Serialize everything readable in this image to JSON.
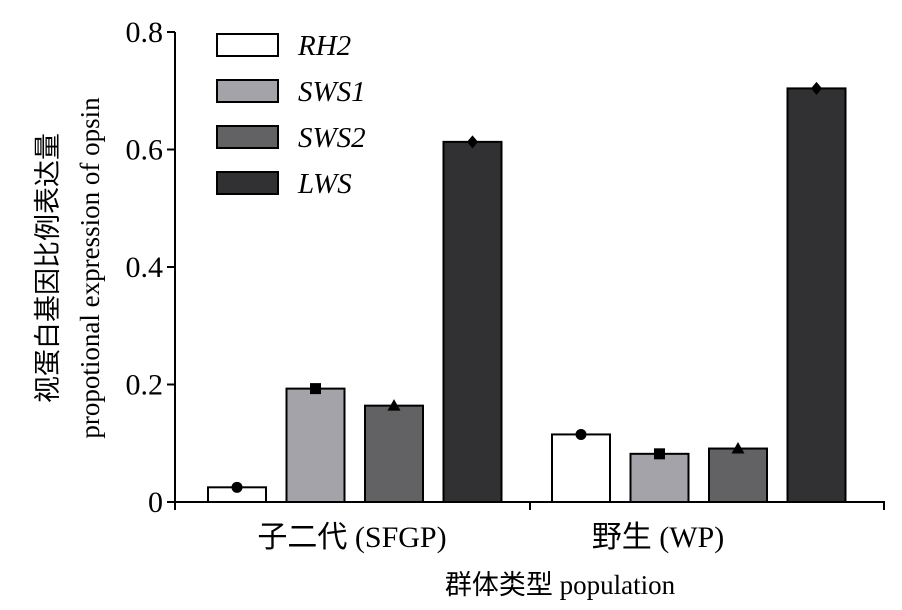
{
  "chart_data": {
    "type": "bar",
    "categories": [
      "子二代 (SFGP)",
      "野生 (WP)"
    ],
    "series": [
      {
        "name": "RH2",
        "values": [
          0.025,
          0.115
        ],
        "color": "#ffffff",
        "marker": "circle"
      },
      {
        "name": "SWS1",
        "values": [
          0.193,
          0.082
        ],
        "color": "#a4a3aa",
        "marker": "square"
      },
      {
        "name": "SWS2",
        "values": [
          0.164,
          0.091
        ],
        "color": "#626163",
        "marker": "triangle"
      },
      {
        "name": "LWS",
        "values": [
          0.613,
          0.704
        ],
        "color": "#313133",
        "marker": "diamond"
      }
    ],
    "xlabel": "群体类型 population",
    "ylabel_line1": "视蛋白基因比例表达量",
    "ylabel_line2": "propotional expression of opsin",
    "ylim": [
      0,
      0.8
    ],
    "yticks": [
      "0",
      "0.2",
      "0.4",
      "0.6",
      "0.8"
    ],
    "legend_position": "top-left",
    "grid": false
  }
}
